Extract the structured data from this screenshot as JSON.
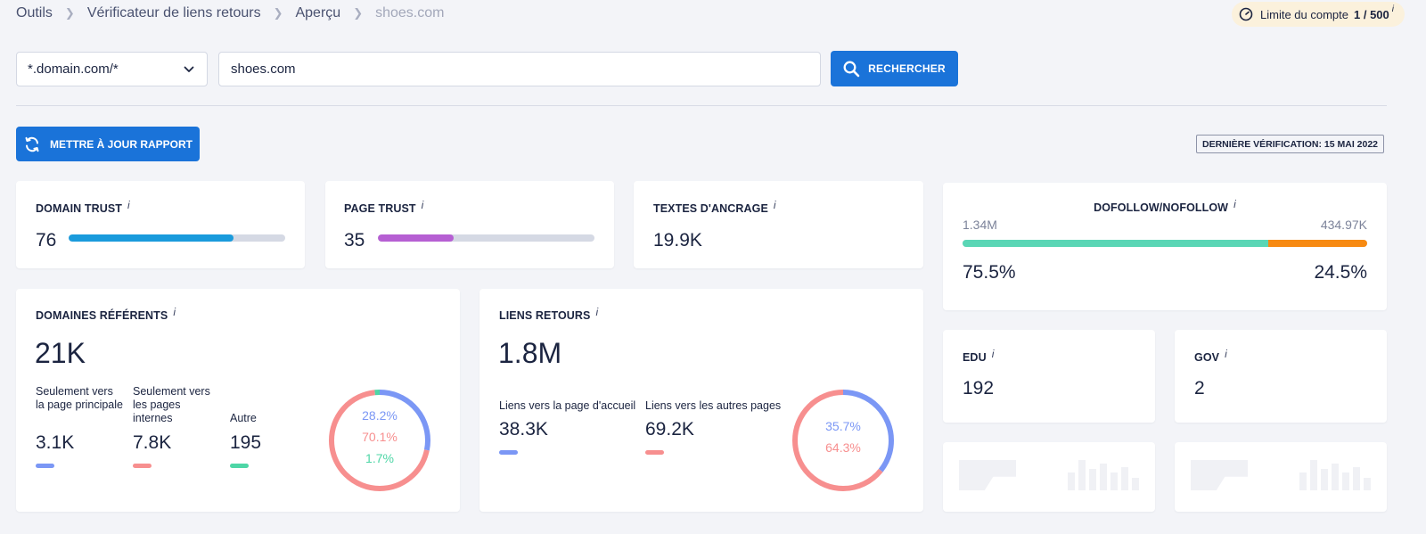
{
  "breadcrumb": {
    "items": [
      "Outils",
      "Vérificateur de liens retours",
      "Aperçu"
    ],
    "current": "shoes.com"
  },
  "account_limit": {
    "label": "Limite du compte",
    "value": "1 / 500",
    "info": "i"
  },
  "search": {
    "scope": "*.domain.com/*",
    "query": "shoes.com",
    "button": "RECHERCHER"
  },
  "update_button": "METTRE À JOUR RAPPORT",
  "last_check": "DERNIÈRE VÉRIFICATION: 15 MAI 2022",
  "info_glyph": "i",
  "domain_trust": {
    "title": "DOMAIN TRUST",
    "value": "76",
    "progress": 0.76,
    "color": "#1a9bdc"
  },
  "page_trust": {
    "title": "PAGE TRUST",
    "value": "35",
    "progress": 0.35,
    "color": "#b65fd3"
  },
  "anchor_texts": {
    "title": "TEXTES D'ANCRAGE",
    "value": "19.9K"
  },
  "dofollow": {
    "title": "DOFOLLOW/NOFOLLOW",
    "dofollow_count": "1.34M",
    "nofollow_count": "434.97K",
    "dofollow_pct": "75.5%",
    "nofollow_pct": "24.5%",
    "dofollow_fraction": 0.755,
    "dofollow_color": "#5ad6b5",
    "nofollow_color": "#f78a12"
  },
  "referring_domains": {
    "title": "DOMAINES RÉFÉRENTS",
    "value": "21K",
    "stats": [
      {
        "label": "Seulement vers la page principale",
        "value": "3.1K",
        "color": "#7b97f5"
      },
      {
        "label": "Seulement vers les pages internes",
        "value": "7.8K",
        "color": "#f78f8f"
      },
      {
        "label": "Autre",
        "value": "195",
        "color": "#4ed6a6"
      }
    ],
    "donut": [
      {
        "pct": "28.2%",
        "fraction": 0.282,
        "color": "#7b97f5"
      },
      {
        "pct": "70.1%",
        "fraction": 0.701,
        "color": "#f78f8f"
      },
      {
        "pct": "1.7%",
        "fraction": 0.017,
        "color": "#4ed6a6"
      }
    ]
  },
  "backlinks": {
    "title": "LIENS RETOURS",
    "value": "1.8M",
    "stats": [
      {
        "label": "Liens vers la page d'accueil",
        "value": "38.3K",
        "color": "#7b97f5"
      },
      {
        "label": "Liens vers les autres pages",
        "value": "69.2K",
        "color": "#f78f8f"
      }
    ],
    "donut": [
      {
        "pct": "35.7%",
        "fraction": 0.357,
        "color": "#7b97f5"
      },
      {
        "pct": "64.3%",
        "fraction": 0.643,
        "color": "#f78f8f"
      }
    ]
  },
  "edu": {
    "title": "EDU",
    "value": "192"
  },
  "gov": {
    "title": "GOV",
    "value": "2"
  }
}
